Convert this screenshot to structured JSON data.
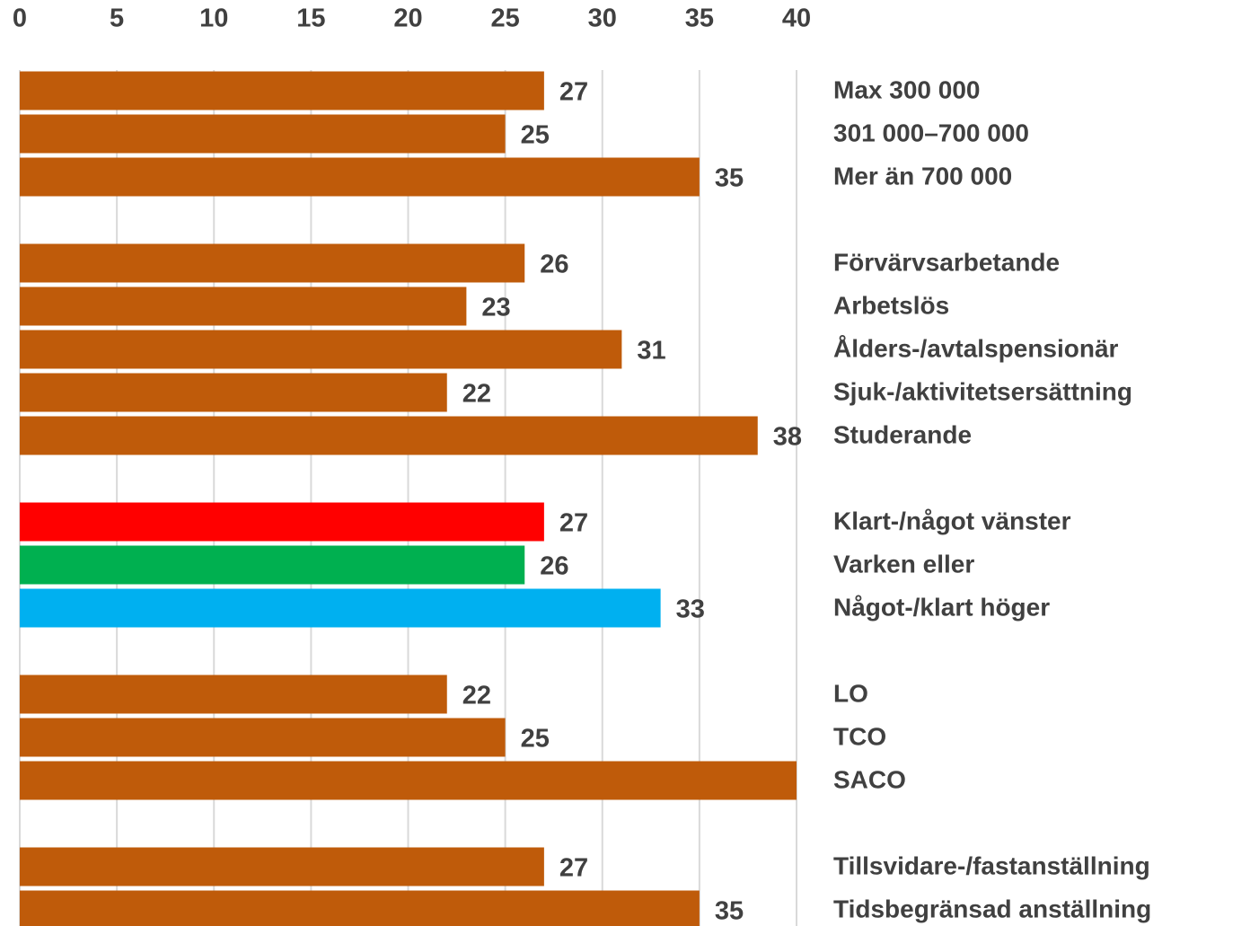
{
  "chart_data": {
    "type": "bar",
    "orientation": "horizontal",
    "categories": [
      "Max 300 000",
      "301 000–700 000",
      "Mer än 700 000",
      null,
      "Förvärvsarbetande",
      "Arbetslös",
      "Ålders-/avtalspensionär",
      "Sjuk-/aktivitetsersättning",
      "Studerande",
      null,
      "Klart-/något vänster",
      "Varken eller",
      "Något-/klart höger",
      null,
      "LO",
      "TCO",
      "SACO",
      null,
      "Tillsvidare-/fastanställning",
      "Tidsbegränsad anställning"
    ],
    "values": [
      27,
      25,
      35,
      null,
      26,
      23,
      31,
      22,
      38,
      null,
      27,
      26,
      33,
      null,
      22,
      25,
      40,
      null,
      27,
      35
    ],
    "value_labels": [
      "27",
      "25",
      "35",
      null,
      "26",
      "23",
      "31",
      "22",
      "38",
      null,
      "27",
      "26",
      "33",
      null,
      "22",
      "25",
      null,
      null,
      "27",
      "35"
    ],
    "color": "#bf5b0a",
    "colors": [
      "#bf5b0a",
      "#bf5b0a",
      "#bf5b0a",
      null,
      "#bf5b0a",
      "#bf5b0a",
      "#bf5b0a",
      "#bf5b0a",
      "#bf5b0a",
      null,
      "#ff0000",
      "#00b050",
      "#00b0f0",
      null,
      "#bf5b0a",
      "#bf5b0a",
      "#bf5b0a",
      null,
      "#bf5b0a",
      "#bf5b0a"
    ],
    "xlim": [
      0,
      40
    ],
    "xticks": [
      0,
      5,
      10,
      15,
      20,
      25,
      30,
      35,
      40
    ],
    "grid": true
  }
}
